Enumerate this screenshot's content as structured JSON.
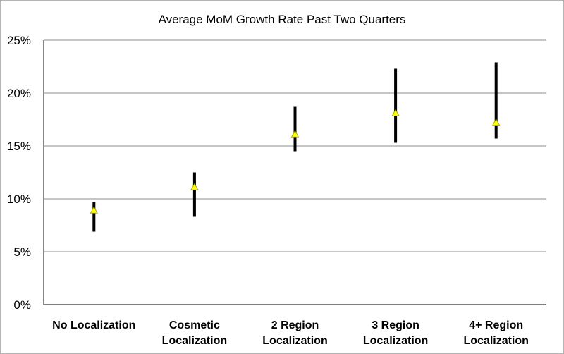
{
  "chart_data": {
    "type": "scatter",
    "title": "Average MoM Growth Rate Past Two Quarters",
    "xlabel": "",
    "ylabel": "",
    "ylim": [
      0,
      25
    ],
    "yticks": [
      "0%",
      "5%",
      "10%",
      "15%",
      "20%",
      "25%"
    ],
    "grid": true,
    "categories": [
      [
        "No Localization"
      ],
      [
        "Cosmetic",
        "Localization"
      ],
      [
        "2 Region",
        "Localization"
      ],
      [
        "3 Region",
        "Localization"
      ],
      [
        "4+ Region",
        "Localization"
      ]
    ],
    "points": [
      {
        "value": 8.9,
        "low": 6.9,
        "high": 9.7
      },
      {
        "value": 11.1,
        "low": 8.3,
        "high": 12.5
      },
      {
        "value": 16.1,
        "low": 14.5,
        "high": 18.7
      },
      {
        "value": 18.1,
        "low": 15.3,
        "high": 22.3
      },
      {
        "value": 17.2,
        "low": 15.7,
        "high": 22.9
      }
    ],
    "colors": {
      "marker": "#ffff00",
      "marker_edge": "#9a9a00",
      "error_bar": "#000000",
      "grid": "#8c8c8c"
    }
  }
}
